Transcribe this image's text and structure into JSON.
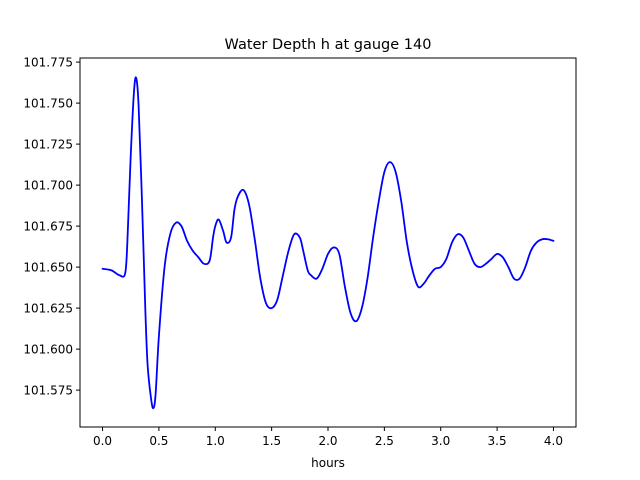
{
  "chart_data": {
    "type": "line",
    "title": "Water Depth h at gauge 140",
    "xlabel": "hours",
    "ylabel": "",
    "xlim": [
      -0.2,
      4.2
    ],
    "ylim": [
      101.5525,
      101.7775
    ],
    "xticks": [
      {
        "value": 0.0,
        "label": "0.0"
      },
      {
        "value": 0.5,
        "label": "0.5"
      },
      {
        "value": 1.0,
        "label": "1.0"
      },
      {
        "value": 1.5,
        "label": "1.5"
      },
      {
        "value": 2.0,
        "label": "2.0"
      },
      {
        "value": 2.5,
        "label": "2.5"
      },
      {
        "value": 3.0,
        "label": "3.0"
      },
      {
        "value": 3.5,
        "label": "3.5"
      },
      {
        "value": 4.0,
        "label": "4.0"
      }
    ],
    "yticks": [
      {
        "value": 101.575,
        "label": "101.575"
      },
      {
        "value": 101.6,
        "label": "101.600"
      },
      {
        "value": 101.625,
        "label": "101.625"
      },
      {
        "value": 101.65,
        "label": "101.650"
      },
      {
        "value": 101.675,
        "label": "101.675"
      },
      {
        "value": 101.7,
        "label": "101.700"
      },
      {
        "value": 101.725,
        "label": "101.725"
      },
      {
        "value": 101.75,
        "label": "101.750"
      },
      {
        "value": 101.775,
        "label": "101.775"
      }
    ],
    "grid": false,
    "series": [
      {
        "color": "#0000ff",
        "x": [
          0.0,
          0.08,
          0.15,
          0.2,
          0.22,
          0.25,
          0.28,
          0.3,
          0.32,
          0.35,
          0.38,
          0.4,
          0.43,
          0.45,
          0.47,
          0.5,
          0.55,
          0.6,
          0.65,
          0.7,
          0.75,
          0.8,
          0.85,
          0.9,
          0.95,
          0.98,
          1.0,
          1.03,
          1.07,
          1.1,
          1.14,
          1.17,
          1.2,
          1.25,
          1.3,
          1.35,
          1.4,
          1.45,
          1.5,
          1.55,
          1.6,
          1.65,
          1.7,
          1.75,
          1.78,
          1.82,
          1.85,
          1.9,
          1.95,
          2.0,
          2.05,
          2.1,
          2.15,
          2.2,
          2.25,
          2.3,
          2.35,
          2.4,
          2.45,
          2.5,
          2.55,
          2.6,
          2.65,
          2.7,
          2.75,
          2.8,
          2.85,
          2.9,
          2.95,
          3.0,
          3.05,
          3.1,
          3.15,
          3.2,
          3.25,
          3.3,
          3.35,
          3.4,
          3.45,
          3.5,
          3.55,
          3.6,
          3.65,
          3.7,
          3.75,
          3.8,
          3.85,
          3.9,
          3.95,
          4.0
        ],
        "y": [
          101.649,
          101.648,
          101.645,
          101.646,
          101.665,
          101.718,
          101.758,
          101.765,
          101.748,
          101.69,
          101.623,
          101.59,
          101.57,
          101.564,
          101.572,
          101.608,
          101.65,
          101.67,
          101.677,
          101.675,
          101.666,
          101.66,
          101.656,
          101.652,
          101.654,
          101.668,
          101.675,
          101.679,
          101.672,
          101.665,
          101.668,
          101.685,
          101.693,
          101.697,
          101.688,
          101.667,
          101.643,
          101.628,
          101.625,
          101.63,
          101.645,
          101.66,
          101.67,
          101.668,
          101.66,
          101.648,
          101.645,
          101.643,
          101.649,
          101.658,
          101.662,
          101.658,
          101.638,
          101.622,
          101.617,
          101.625,
          101.643,
          101.668,
          101.69,
          101.708,
          101.714,
          101.708,
          101.69,
          101.665,
          101.648,
          101.638,
          101.64,
          101.645,
          101.649,
          101.65,
          101.655,
          101.665,
          101.67,
          101.668,
          101.66,
          101.652,
          101.65,
          101.652,
          101.655,
          101.658,
          101.656,
          101.65,
          101.643,
          101.643,
          101.65,
          101.66,
          101.665,
          101.667,
          101.667,
          101.666
        ]
      }
    ]
  }
}
